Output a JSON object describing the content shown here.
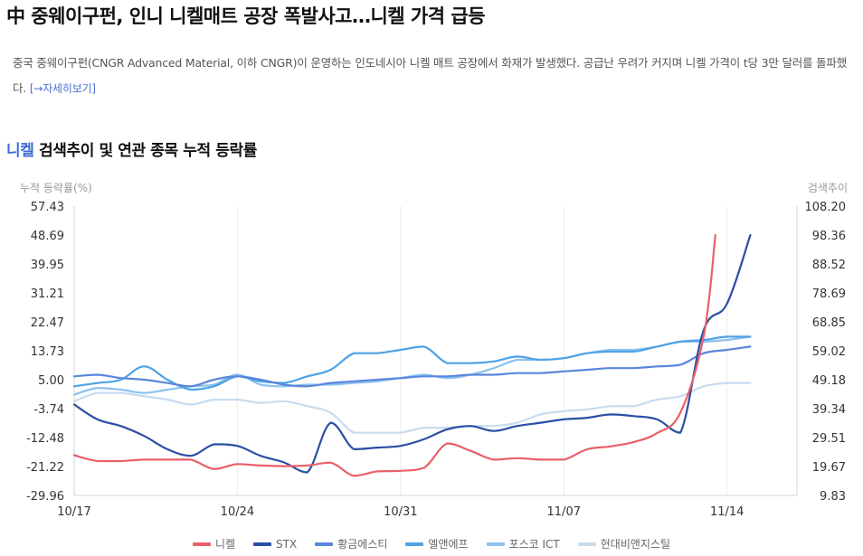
{
  "headline": "中 중웨이구펀, 인니 니켈매트 공장 폭발사고…니켈 가격 급등",
  "summary": "중국 중웨이구펀(CNGR Advanced Material, 이하 CNGR)이 운영하는 인도네시아 니켈 매트 공장에서 화재가 발생했다. 공급난 우려가 커지며 니켈 가격이 t당 3만 달러를 돌파했다.",
  "more_link": "[→자세히보기]",
  "chart_title_keyword": "니켈",
  "chart_title_rest": " 검색추이 및 연관 종목 누적 등락률",
  "chart_data": {
    "type": "line",
    "ylabel": "누적 등락률(%)",
    "y2label": "검색추이",
    "ylim": [
      -29.96,
      57.43
    ],
    "y2lim": [
      9.83,
      108.2
    ],
    "yticks": [
      "57.43",
      "48.69",
      "39.95",
      "31.21",
      "22.47",
      "13.73",
      "5.00",
      "-3.74",
      "-12.48",
      "-21.22",
      "-29.96"
    ],
    "y2ticks": [
      "108.20",
      "98.36",
      "88.52",
      "78.69",
      "68.85",
      "59.02",
      "49.18",
      "39.34",
      "29.51",
      "19.67",
      "9.83"
    ],
    "xticks": [
      {
        "label": "10/17",
        "x": 0
      },
      {
        "label": "10/24",
        "x": 7
      },
      {
        "label": "10/31",
        "x": 14
      },
      {
        "label": "11/07",
        "x": 21
      },
      {
        "label": "11/14",
        "x": 28
      }
    ],
    "x_range": [
      0,
      31
    ],
    "grid_vertical": true,
    "legend_position": "bottom",
    "series": [
      {
        "name": "니켈",
        "axis": "right",
        "color": "#e8606a",
        "points": [
          [
            0,
            23.5
          ],
          [
            1,
            21.5
          ],
          [
            2,
            21.5
          ],
          [
            3,
            22
          ],
          [
            4,
            22
          ],
          [
            5,
            22
          ],
          [
            6,
            18.8
          ],
          [
            7,
            20.5
          ],
          [
            8,
            20
          ],
          [
            9,
            19.8
          ],
          [
            10,
            20
          ],
          [
            11,
            21
          ],
          [
            12,
            16.5
          ],
          [
            13,
            18
          ],
          [
            14,
            18.2
          ],
          [
            15,
            19.2
          ],
          [
            16,
            27.5
          ],
          [
            17,
            25
          ],
          [
            18,
            22
          ],
          [
            19,
            22.5
          ],
          [
            20,
            22
          ],
          [
            21,
            22
          ],
          [
            22,
            25.5
          ],
          [
            23,
            26.5
          ],
          [
            24,
            28
          ],
          [
            25,
            31
          ],
          [
            26,
            38
          ],
          [
            27,
            64
          ],
          [
            27.5,
            98.36
          ]
        ]
      },
      {
        "name": "STX",
        "axis": "left",
        "color": "#2b4fa5",
        "points": [
          [
            0,
            -2.5
          ],
          [
            1,
            -7
          ],
          [
            2,
            -9
          ],
          [
            3,
            -12
          ],
          [
            4,
            -16
          ],
          [
            5,
            -18
          ],
          [
            6,
            -14.5
          ],
          [
            7,
            -15
          ],
          [
            8,
            -18
          ],
          [
            9,
            -20
          ],
          [
            10,
            -23
          ],
          [
            11,
            -8
          ],
          [
            12,
            -16
          ],
          [
            13,
            -15.5
          ],
          [
            14,
            -15
          ],
          [
            15,
            -13
          ],
          [
            16,
            -10
          ],
          [
            17,
            -9
          ],
          [
            18,
            -10.5
          ],
          [
            19,
            -9
          ],
          [
            20,
            -8
          ],
          [
            21,
            -7
          ],
          [
            22,
            -6.5
          ],
          [
            23,
            -5.5
          ],
          [
            24,
            -6
          ],
          [
            25,
            -7
          ],
          [
            26,
            -11
          ],
          [
            27,
            20
          ],
          [
            28,
            28
          ],
          [
            29,
            48.69
          ]
        ]
      },
      {
        "name": "황금에스티",
        "axis": "left",
        "color": "#5b86dd",
        "points": [
          [
            0,
            6
          ],
          [
            1,
            6.5
          ],
          [
            2,
            5.5
          ],
          [
            3,
            5
          ],
          [
            4,
            4
          ],
          [
            5,
            3
          ],
          [
            6,
            5
          ],
          [
            7,
            6
          ],
          [
            8,
            5
          ],
          [
            9,
            3.5
          ],
          [
            10,
            3
          ],
          [
            11,
            4
          ],
          [
            12,
            4.5
          ],
          [
            13,
            5
          ],
          [
            14,
            5.5
          ],
          [
            15,
            6
          ],
          [
            16,
            6
          ],
          [
            17,
            6.5
          ],
          [
            18,
            6.5
          ],
          [
            19,
            7
          ],
          [
            20,
            7
          ],
          [
            21,
            7.5
          ],
          [
            22,
            8
          ],
          [
            23,
            8.5
          ],
          [
            24,
            8.5
          ],
          [
            25,
            9
          ],
          [
            26,
            9.5
          ],
          [
            27,
            13
          ],
          [
            28,
            14
          ],
          [
            29,
            15
          ]
        ]
      },
      {
        "name": "엘앤에프",
        "axis": "left",
        "color": "#4ea2e6",
        "points": [
          [
            0,
            3
          ],
          [
            1,
            4
          ],
          [
            2,
            5
          ],
          [
            3,
            9
          ],
          [
            4,
            5
          ],
          [
            5,
            2
          ],
          [
            6,
            3
          ],
          [
            7,
            6
          ],
          [
            8,
            4.5
          ],
          [
            9,
            4
          ],
          [
            10,
            6
          ],
          [
            11,
            8
          ],
          [
            12,
            13
          ],
          [
            13,
            13
          ],
          [
            14,
            14
          ],
          [
            15,
            15
          ],
          [
            16,
            10
          ],
          [
            17,
            10
          ],
          [
            18,
            10.5
          ],
          [
            19,
            12
          ],
          [
            20,
            11
          ],
          [
            21,
            11.5
          ],
          [
            22,
            13
          ],
          [
            23,
            13.5
          ],
          [
            24,
            13.5
          ],
          [
            25,
            15
          ],
          [
            26,
            16.5
          ],
          [
            27,
            17
          ],
          [
            28,
            18
          ],
          [
            29,
            18
          ]
        ]
      },
      {
        "name": "포스코 ICT",
        "axis": "left",
        "color": "#8cc2ef",
        "points": [
          [
            0,
            0.5
          ],
          [
            1,
            2.5
          ],
          [
            2,
            2
          ],
          [
            3,
            1
          ],
          [
            4,
            2
          ],
          [
            5,
            3
          ],
          [
            6,
            3.5
          ],
          [
            7,
            6.5
          ],
          [
            8,
            3.5
          ],
          [
            9,
            3
          ],
          [
            10,
            3.5
          ],
          [
            11,
            3.5
          ],
          [
            12,
            4
          ],
          [
            13,
            4.5
          ],
          [
            14,
            5.5
          ],
          [
            15,
            6.5
          ],
          [
            16,
            5.5
          ],
          [
            17,
            6.5
          ],
          [
            18,
            8.5
          ],
          [
            19,
            11
          ],
          [
            20,
            11
          ],
          [
            21,
            11.5
          ],
          [
            22,
            13
          ],
          [
            23,
            14
          ],
          [
            24,
            14
          ],
          [
            25,
            15
          ],
          [
            26,
            16.5
          ],
          [
            27,
            16.5
          ],
          [
            28,
            17
          ],
          [
            29,
            18
          ]
        ]
      },
      {
        "name": "현대비앤지스틸",
        "axis": "left",
        "color": "#c7dcf0",
        "points": [
          [
            0,
            -1.5
          ],
          [
            1,
            1
          ],
          [
            2,
            1
          ],
          [
            3,
            0
          ],
          [
            4,
            -1
          ],
          [
            5,
            -2.5
          ],
          [
            6,
            -1
          ],
          [
            7,
            -1
          ],
          [
            8,
            -2
          ],
          [
            9,
            -1.5
          ],
          [
            10,
            -3
          ],
          [
            11,
            -5
          ],
          [
            12,
            -11
          ],
          [
            13,
            -11
          ],
          [
            14,
            -11
          ],
          [
            15,
            -9.5
          ],
          [
            16,
            -9.5
          ],
          [
            17,
            -9
          ],
          [
            18,
            -9
          ],
          [
            19,
            -8
          ],
          [
            20,
            -5.5
          ],
          [
            21,
            -4.5
          ],
          [
            22,
            -4
          ],
          [
            23,
            -3
          ],
          [
            24,
            -3
          ],
          [
            25,
            -1
          ],
          [
            26,
            0
          ],
          [
            27,
            3
          ],
          [
            28,
            4
          ],
          [
            29,
            4
          ]
        ]
      }
    ]
  }
}
